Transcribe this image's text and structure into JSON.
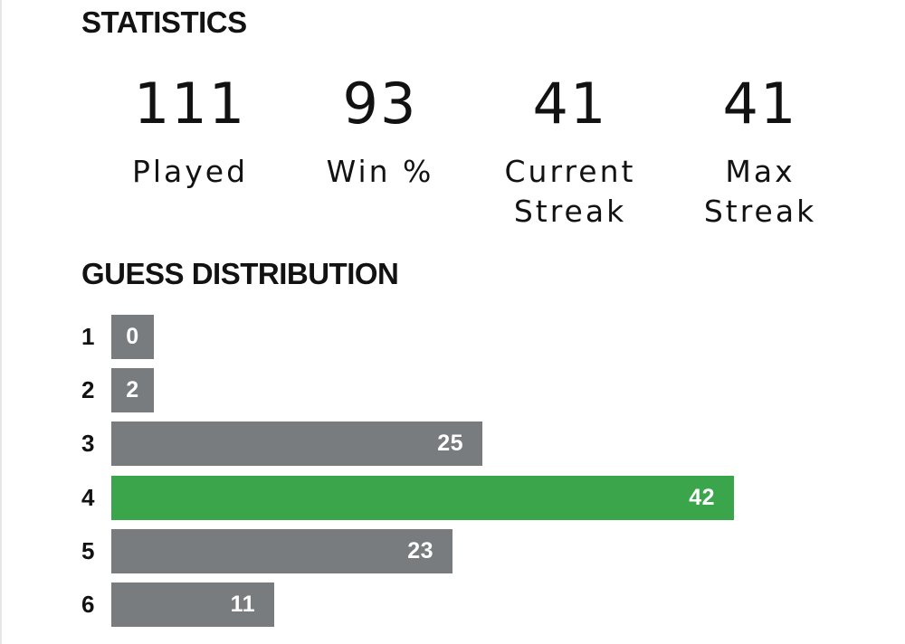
{
  "statistics": {
    "title": "STATISTICS",
    "items": [
      {
        "value": "111",
        "label": "Played"
      },
      {
        "value": "93",
        "label": "Win %"
      },
      {
        "value": "41",
        "label": "Current Streak"
      },
      {
        "value": "41",
        "label": "Max Streak"
      }
    ]
  },
  "guess_distribution": {
    "title": "GUESS DISTRIBUTION",
    "highlight_guess": "4",
    "colors": {
      "bar": "#787c7e",
      "highlight": "#3aa54b"
    },
    "rows": [
      {
        "guess": "1",
        "count": "0"
      },
      {
        "guess": "2",
        "count": "2"
      },
      {
        "guess": "3",
        "count": "25"
      },
      {
        "guess": "4",
        "count": "42"
      },
      {
        "guess": "5",
        "count": "23"
      },
      {
        "guess": "6",
        "count": "11"
      }
    ]
  }
}
